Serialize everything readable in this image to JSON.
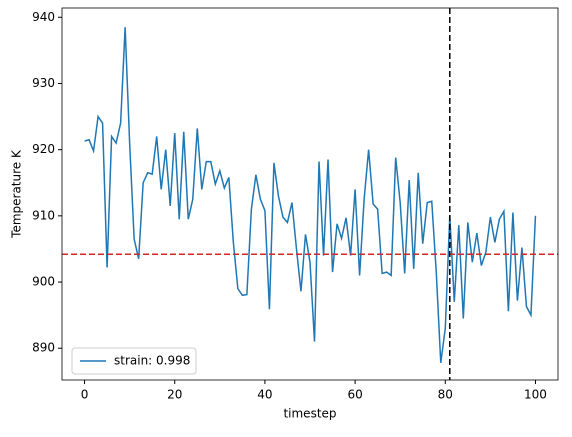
{
  "chart_data": {
    "type": "line",
    "xlabel": "timestep",
    "ylabel": "Temperature K",
    "x": [
      0,
      1,
      2,
      3,
      4,
      5,
      6,
      7,
      8,
      9,
      10,
      11,
      12,
      13,
      14,
      15,
      16,
      17,
      18,
      19,
      20,
      21,
      22,
      23,
      24,
      25,
      26,
      27,
      28,
      29,
      30,
      31,
      32,
      33,
      34,
      35,
      36,
      37,
      38,
      39,
      40,
      41,
      42,
      43,
      44,
      45,
      46,
      47,
      48,
      49,
      50,
      51,
      52,
      53,
      54,
      55,
      56,
      57,
      58,
      59,
      60,
      61,
      62,
      63,
      64,
      65,
      66,
      67,
      68,
      69,
      70,
      71,
      72,
      73,
      74,
      75,
      76,
      77,
      78,
      79,
      80,
      81,
      82,
      83,
      84,
      85,
      86,
      87,
      88,
      89,
      90,
      91,
      92,
      93,
      94,
      95,
      96,
      97,
      98,
      99,
      100
    ],
    "series": [
      {
        "name": "strain: 0.998",
        "color": "#1f77b4",
        "values": [
          921.3,
          921.5,
          919.8,
          925,
          924,
          902.2,
          922,
          921,
          924,
          938.5,
          921,
          906.5,
          903.5,
          915,
          916.5,
          916.3,
          922,
          914,
          920,
          911.5,
          922.5,
          909.5,
          922.7,
          909.5,
          912.5,
          923.2,
          914,
          918.2,
          918.2,
          914.8,
          916.8,
          914.2,
          915.8,
          906,
          899,
          898,
          898.1,
          911,
          916.2,
          912.5,
          910.8,
          895.9,
          918,
          913,
          909.8,
          909,
          912,
          905,
          898.6,
          907.2,
          903,
          891,
          918.2,
          904,
          918.5,
          901.5,
          908.8,
          906.6,
          909.7,
          904,
          914,
          901,
          912.5,
          920,
          911.8,
          911,
          901.3,
          901.5,
          901,
          918.8,
          912,
          901.3,
          915.4,
          902,
          916.5,
          905.8,
          912,
          912.2,
          901.5,
          887.8,
          893,
          910,
          897,
          908.6,
          894.5,
          909,
          903,
          907.4,
          902.5,
          904.5,
          909.8,
          906,
          909.5,
          910.7,
          895.6,
          910.5,
          897.2,
          905.2,
          896.3,
          895,
          910
        ]
      }
    ],
    "xlim": [
      -5,
      105
    ],
    "xticks": [
      0,
      20,
      40,
      60,
      80,
      100
    ],
    "ylim": [
      885.2,
      941.4
    ],
    "yticks": [
      890,
      900,
      910,
      920,
      930,
      940
    ],
    "hline": {
      "value": 904.2,
      "color": "#d62728"
    },
    "vline": {
      "value": 81,
      "color": "#000000"
    },
    "legend": "lower left"
  }
}
